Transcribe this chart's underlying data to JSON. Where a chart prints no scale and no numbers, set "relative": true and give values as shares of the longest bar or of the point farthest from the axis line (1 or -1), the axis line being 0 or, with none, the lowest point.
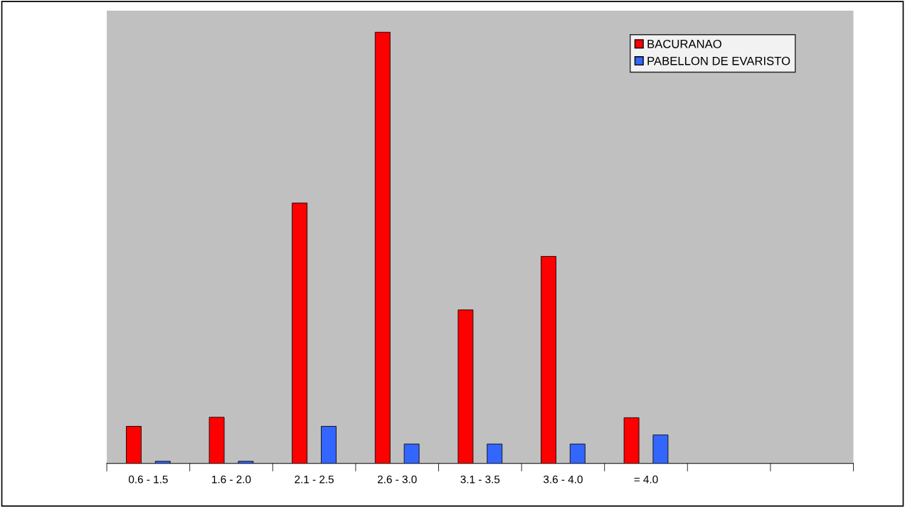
{
  "chart_data": {
    "type": "bar",
    "relative": true,
    "categories": [
      "0.6 - 1.5",
      "1.6 - 2.0",
      "2.1 - 2.5",
      "2.6 - 3.0",
      "3.1 - 3.5",
      "3.6 - 4.0",
      "= 4.0",
      null,
      null
    ],
    "series": [
      {
        "name": "BACURANAO",
        "color": "#ff0000",
        "values": [
          0.086,
          0.107,
          0.604,
          1,
          0.356,
          0.48,
          0.106,
          null,
          null
        ]
      },
      {
        "name": "PABELLON DE EVARISTO",
        "color": "#3366ff",
        "values": [
          0.005,
          0.005,
          0.086,
          0.045,
          0.045,
          0.045,
          0.066,
          null,
          null
        ]
      }
    ],
    "legend": "top right",
    "grid": false
  }
}
